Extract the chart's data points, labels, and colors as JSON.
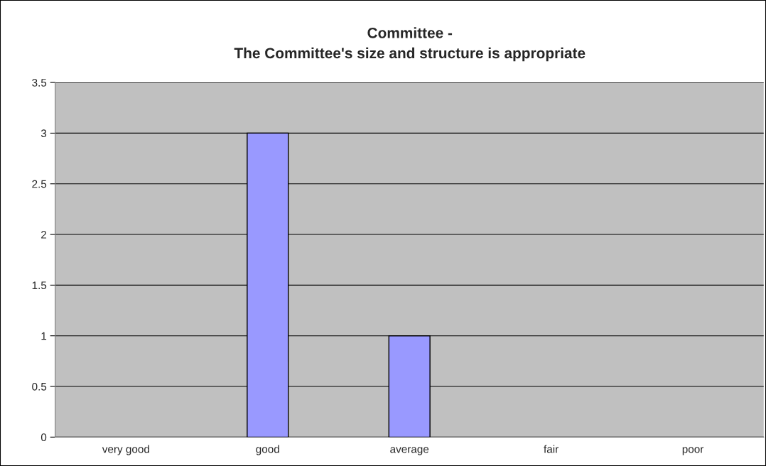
{
  "chart_data": {
    "type": "bar",
    "title": "Committee -\nThe Committee's size and structure is appropriate",
    "categories": [
      "very good",
      "good",
      "average",
      "fair",
      "poor"
    ],
    "values": [
      0,
      3,
      1,
      0,
      0
    ],
    "color": "#9999ff",
    "ylim": [
      0,
      3.5
    ],
    "yticks": [
      0,
      0.5,
      1,
      1.5,
      2,
      2.5,
      3,
      3.5
    ],
    "grid": "y",
    "legend": false
  }
}
